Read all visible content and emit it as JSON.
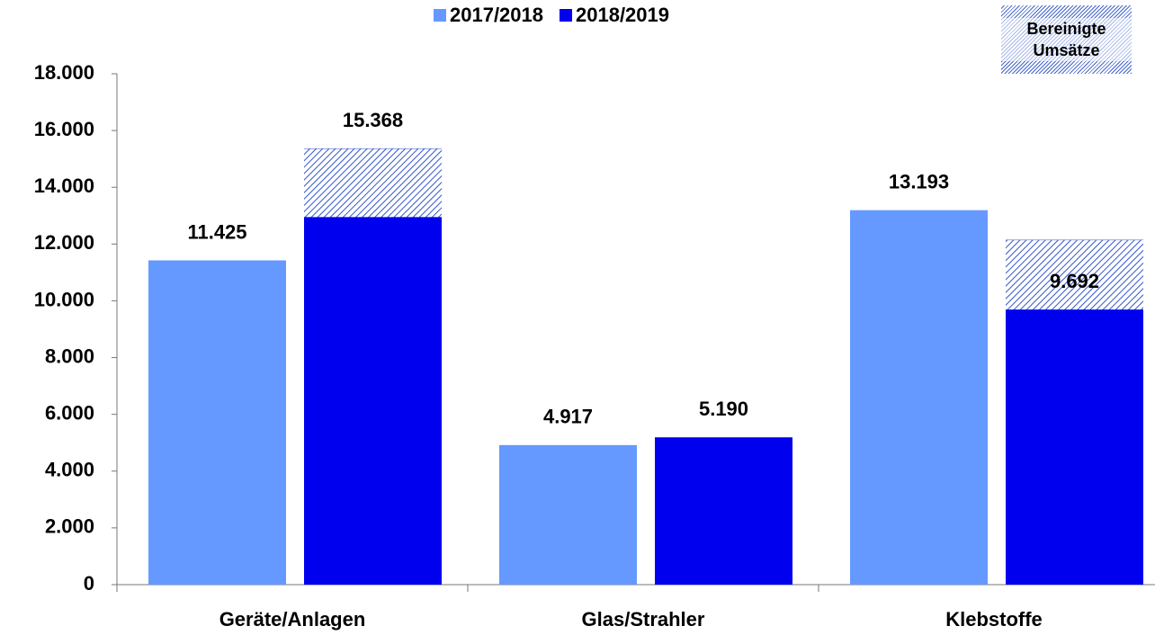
{
  "chart_data": {
    "type": "bar",
    "categories": [
      "Geräte/Anlagen",
      "Glas/Strahler",
      "Klebstoffe"
    ],
    "series": [
      {
        "name": "2017/2018",
        "color": "#6699ff",
        "values": [
          11425,
          4917,
          13193
        ],
        "value_labels": [
          "11.425",
          "4.917",
          "13.193"
        ]
      },
      {
        "name": "2018/2019",
        "color": "#0000ee",
        "values": [
          12950,
          5190,
          9692
        ],
        "value_labels": [
          null,
          "5.190",
          "9.692"
        ]
      },
      {
        "name": "Bereinigte Umsätze",
        "color": "#3355cc",
        "pattern": "hatch",
        "values": [
          15368,
          null,
          12150
        ],
        "value_labels": [
          "15.368",
          null,
          null
        ]
      }
    ],
    "ylim": [
      0,
      18000
    ],
    "yticks": [
      0,
      {
        "value": 2000,
        "label": "2.000"
      },
      {
        "value": 4000,
        "label": "4.000"
      },
      {
        "value": 6000,
        "label": "6.000"
      },
      {
        "value": 8000,
        "label": "8.000"
      },
      {
        "value": 10000,
        "label": "10.000"
      },
      {
        "value": 12000,
        "label": "12.000"
      },
      {
        "value": 14000,
        "label": "14.000"
      },
      {
        "value": 16000,
        "label": "16.000"
      },
      {
        "value": 18000,
        "label": "18.000"
      }
    ],
    "legend": "top"
  }
}
